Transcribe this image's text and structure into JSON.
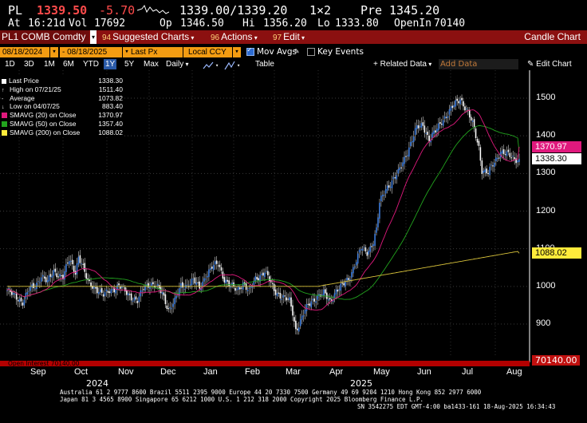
{
  "quote": {
    "ticker": "PL",
    "last": "1339.50",
    "change": "-5.70",
    "bid_ask": "1339.00/1339.20",
    "size": "1×2",
    "prev_label": "Pre",
    "prev": "1345.20",
    "at_label": "At",
    "time": "16:21d",
    "vol_label": "Vol",
    "vol": "17692",
    "op_label": "Op",
    "op": "1346.50",
    "hi_label": "Hi",
    "hi": "1356.20",
    "lo_label": "Lo",
    "lo": "1333.80",
    "oi_label": "OpenIn",
    "oi": "70140"
  },
  "menubar": {
    "security": "PL1 COMB Comdty",
    "suggested_num": "94",
    "suggested": "Suggested Charts",
    "actions_num": "96",
    "actions": "Actions",
    "edit_num": "97",
    "edit": "Edit",
    "title": "Candle Chart"
  },
  "controls": {
    "start_date": "08/18/2024",
    "end_date": "08/18/2025",
    "field": "Last Px",
    "currency": "Local CCY",
    "mov_avgs": "Mov Avgs",
    "key_events": "Key Events",
    "periods": [
      "1D",
      "3D",
      "1M",
      "6M",
      "YTD",
      "1Y",
      "5Y",
      "Max"
    ],
    "selected_period": "1Y",
    "frequency": "Daily",
    "table": "Table",
    "related_data": "+ Related Data",
    "add_data_placeholder": "Add Data",
    "edit_chart": "Edit Chart"
  },
  "legend": [
    {
      "label": "Last Price",
      "value": "1338.30",
      "color": "#ffffff",
      "marker": "box"
    },
    {
      "label": "High on 07/21/25",
      "value": "1511.40",
      "color": "#ffffff",
      "marker": "high"
    },
    {
      "label": "Average",
      "value": "1073.82",
      "color": "#ffffff",
      "marker": "avg"
    },
    {
      "label": "Low on 04/07/25",
      "value": "883.40",
      "color": "#ffffff",
      "marker": "low"
    },
    {
      "label": "SMAVG (20)  on Close",
      "value": "1370.97",
      "color": "#e0197d",
      "marker": "sw"
    },
    {
      "label": "SMAVG (50)  on Close",
      "value": "1357.40",
      "color": "#22a31e",
      "marker": "sw"
    },
    {
      "label": "SMAVG (200)  on Close",
      "value": "1088.02",
      "color": "#ffeb3b",
      "marker": "sw"
    }
  ],
  "axis": {
    "y_ticks": [
      "1500",
      "1400",
      "1300",
      "1200",
      "1100",
      "1000",
      "900"
    ],
    "tags": [
      {
        "text": "1370.97",
        "bg": "#e0197d",
        "fg": "#ffffff"
      },
      {
        "text": "1338.30",
        "bg": "#ffffff",
        "fg": "#000000"
      },
      {
        "text": "1088.02",
        "bg": "#ffeb3b",
        "fg": "#000000"
      }
    ],
    "oi_tag": "70140.00",
    "months": [
      "Sep",
      "Oct",
      "Nov",
      "Dec",
      "Jan",
      "Feb",
      "Mar",
      "Apr",
      "May",
      "Jun",
      "Jul",
      "Aug"
    ],
    "years": [
      "2024",
      "2025"
    ],
    "open_interest_label": "Open Interest  70140.00"
  },
  "footer": {
    "line1": "Australia 61 2 9777 8600 Brazil 5511 2395 9000 Europe 44 20 7330 7500 Germany 49 69 9204 1210 Hong Kong 852 2977 6000",
    "line2": "Japan 81 3 4565 8900       Singapore 65 6212 1000       U.S. 1 212 318 2000              Copyright 2025 Bloomberg Finance L.P.",
    "line3": "SN 3542275 EDT  GMT-4:00 ba1433-161 18-Aug-2025 16:34:43"
  },
  "chart_data": {
    "type": "candlestick",
    "title": "",
    "ylim": [
      800,
      1530
    ],
    "y_ticks": [
      900,
      1000,
      1100,
      1200,
      1300,
      1400,
      1500
    ],
    "series": [
      {
        "name": "Last Price",
        "anchors": [
          [
            0,
            990
          ],
          [
            4,
            975
          ],
          [
            10,
            960
          ],
          [
            14,
            990
          ],
          [
            18,
            1000
          ],
          [
            22,
            1030
          ],
          [
            26,
            1010
          ],
          [
            30,
            1040
          ],
          [
            36,
            1025
          ],
          [
            40,
            1070
          ],
          [
            44,
            1040
          ],
          [
            46,
            1080
          ],
          [
            48,
            1060
          ],
          [
            52,
            1010
          ],
          [
            56,
            1000
          ],
          [
            62,
            975
          ],
          [
            66,
            990
          ],
          [
            72,
            1000
          ],
          [
            78,
            980
          ],
          [
            84,
            960
          ],
          [
            88,
            995
          ],
          [
            92,
            1010
          ],
          [
            96,
            1000
          ],
          [
            100,
            980
          ],
          [
            104,
            940
          ],
          [
            108,
            960
          ],
          [
            112,
            1000
          ],
          [
            116,
            1005
          ],
          [
            120,
            1015
          ],
          [
            124,
            995
          ],
          [
            128,
            1030
          ],
          [
            132,
            1050
          ],
          [
            136,
            1060
          ],
          [
            140,
            1020
          ],
          [
            144,
            1000
          ],
          [
            148,
            990
          ],
          [
            152,
            1010
          ],
          [
            156,
            985
          ],
          [
            160,
            1020
          ],
          [
            166,
            1040
          ],
          [
            172,
            990
          ],
          [
            178,
            970
          ],
          [
            182,
            960
          ],
          [
            184,
            930
          ],
          [
            186,
            885
          ],
          [
            188,
            900
          ],
          [
            192,
            935
          ],
          [
            196,
            960
          ],
          [
            200,
            975
          ],
          [
            204,
            980
          ],
          [
            208,
            960
          ],
          [
            212,
            990
          ],
          [
            216,
            1000
          ],
          [
            220,
            1020
          ],
          [
            224,
            1060
          ],
          [
            228,
            1100
          ],
          [
            232,
            1090
          ],
          [
            236,
            1120
          ],
          [
            238,
            1150
          ],
          [
            240,
            1220
          ],
          [
            244,
            1260
          ],
          [
            248,
            1280
          ],
          [
            252,
            1300
          ],
          [
            256,
            1340
          ],
          [
            260,
            1380
          ],
          [
            264,
            1420
          ],
          [
            268,
            1430
          ],
          [
            272,
            1390
          ],
          [
            276,
            1410
          ],
          [
            280,
            1440
          ],
          [
            284,
            1460
          ],
          [
            288,
            1480
          ],
          [
            292,
            1500
          ],
          [
            296,
            1470
          ],
          [
            300,
            1430
          ],
          [
            304,
            1370
          ],
          [
            306,
            1310
          ],
          [
            310,
            1300
          ],
          [
            314,
            1330
          ],
          [
            318,
            1360
          ],
          [
            322,
            1350
          ],
          [
            326,
            1340
          ],
          [
            330,
            1338.3
          ]
        ]
      },
      {
        "name": "SMAVG (20) on Close",
        "last": "1370.97"
      },
      {
        "name": "SMAVG (50) on Close",
        "last": "1357.40"
      },
      {
        "name": "SMAVG (200) on Close",
        "last": "1088.02"
      }
    ],
    "months": [
      "Sep",
      "Oct",
      "Nov",
      "Dec",
      "Jan",
      "Feb",
      "Mar",
      "Apr",
      "May",
      "Jun",
      "Jul",
      "Aug"
    ]
  }
}
